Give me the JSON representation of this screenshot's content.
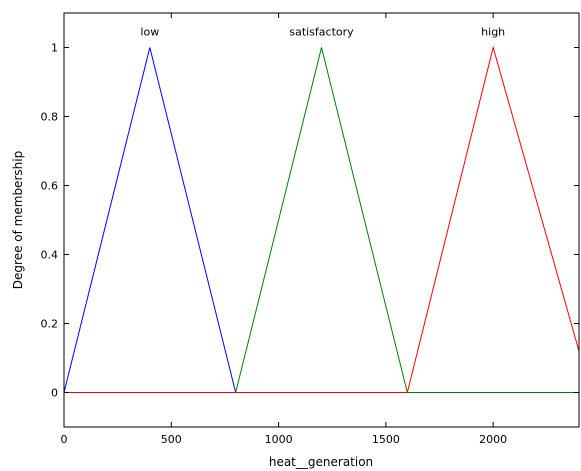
{
  "chart_data": {
    "type": "line",
    "title": "",
    "xlabel": "heat__generation",
    "ylabel": "Degree of membership",
    "xlim": [
      0,
      2400
    ],
    "ylim": [
      -0.1,
      1.1
    ],
    "grid": false,
    "legend": "none",
    "x_ticks": [
      0,
      500,
      1000,
      1500,
      2000
    ],
    "y_ticks": [
      0,
      0.2,
      0.4,
      0.6,
      0.8,
      1
    ],
    "series": [
      {
        "name": "low",
        "color": "#0000ff",
        "points": [
          [
            0,
            0
          ],
          [
            400,
            1
          ],
          [
            800,
            0
          ]
        ],
        "baseline": [
          [
            0,
            0
          ],
          [
            800,
            0
          ]
        ]
      },
      {
        "name": "satisfactory",
        "color": "#008000",
        "points": [
          [
            800,
            0
          ],
          [
            1200,
            1
          ],
          [
            1600,
            0
          ]
        ],
        "baseline": [
          [
            800,
            0
          ],
          [
            2400,
            0
          ]
        ]
      },
      {
        "name": "high",
        "color": "#ff0000",
        "points": [
          [
            1600,
            0
          ],
          [
            2000,
            1
          ],
          [
            2400,
            0.12
          ]
        ],
        "baseline": [
          [
            0,
            0
          ],
          [
            1600,
            0
          ]
        ]
      }
    ]
  }
}
